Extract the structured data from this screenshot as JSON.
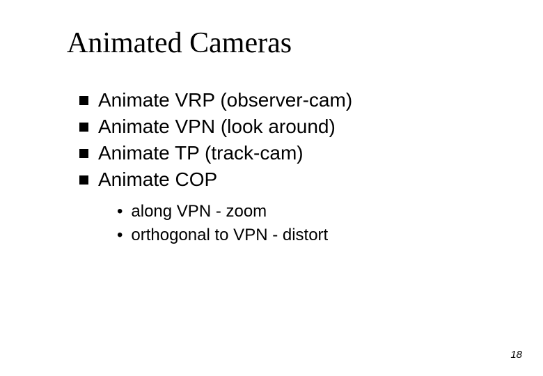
{
  "slide": {
    "title": "Animated Cameras",
    "page_number": "18",
    "bullets": [
      {
        "text": "Animate VRP (observer-cam)"
      },
      {
        "text": "Animate VPN (look around)"
      },
      {
        "text": "Animate TP (track-cam)"
      },
      {
        "text": "Animate COP"
      }
    ],
    "sub_bullets": [
      {
        "text": "along VPN - zoom"
      },
      {
        "text": "orthogonal to VPN - distort"
      }
    ]
  },
  "style": {
    "background_color": "#ffffff",
    "text_color": "#000000",
    "title_fontsize": 42,
    "title_fontfamily": "Times New Roman",
    "bullet_fontsize": 28,
    "bullet_fontfamily": "Arial",
    "sub_bullet_fontsize": 24,
    "square_bullet_size": 13,
    "square_bullet_color": "#000000",
    "page_number_fontsize": 15
  }
}
